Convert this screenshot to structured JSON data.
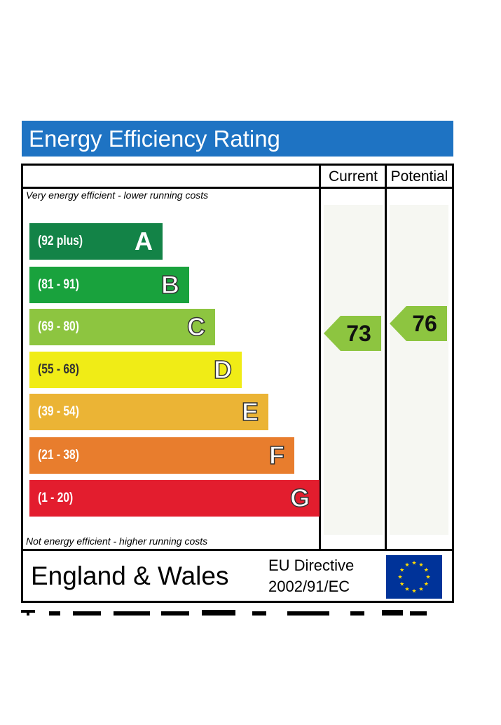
{
  "title": "Energy Efficiency Rating",
  "columns": {
    "current": "Current",
    "potential": "Potential"
  },
  "top_note": "Very energy efficient - lower running costs",
  "bottom_note": "Not energy efficient - higher running costs",
  "chart_data": {
    "type": "bar",
    "bands": [
      {
        "range": "(92 plus)",
        "letter": "A",
        "color": "#138347"
      },
      {
        "range": "(81 - 91)",
        "letter": "B",
        "color": "#19a23d"
      },
      {
        "range": "(69 - 80)",
        "letter": "C",
        "color": "#8dc540"
      },
      {
        "range": "(55 - 68)",
        "letter": "D",
        "color": "#f0ec16"
      },
      {
        "range": "(39 - 54)",
        "letter": "E",
        "color": "#ebb435"
      },
      {
        "range": "(21 - 38)",
        "letter": "F",
        "color": "#e87d2d"
      },
      {
        "range": "(1 - 20)",
        "letter": "G",
        "color": "#e31d2e"
      }
    ],
    "current": {
      "value": "73",
      "band": "C",
      "color": "#8dc540"
    },
    "potential": {
      "value": "76",
      "band": "C",
      "color": "#8dc540"
    }
  },
  "footer": {
    "country": "England & Wales",
    "directive_line1": "EU Directive",
    "directive_line2": "2002/91/EC",
    "flag_icon": "eu-flag-icon",
    "flag_color": "#003399",
    "star_color": "#ffdd00"
  }
}
